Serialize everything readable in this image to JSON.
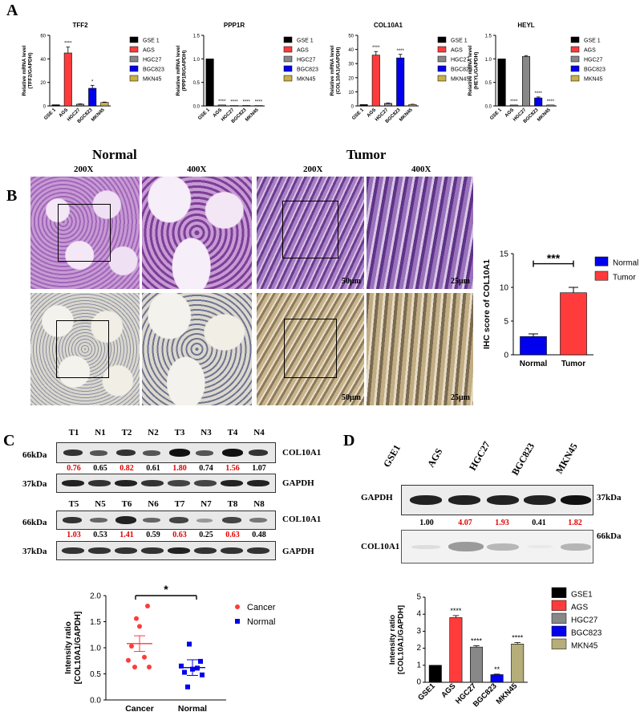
{
  "panels": {
    "A": "A",
    "B": "B",
    "C": "C",
    "D": "D"
  },
  "colors": {
    "black": "#000000",
    "red": "#ff3b3b",
    "gray": "#888888",
    "blue": "#0000ee",
    "olive": "#c8b04a",
    "tan": "#b5ad7a"
  },
  "panelA": {
    "legend": [
      "GSE 1",
      "AGS",
      "HGC27",
      "BGC823",
      "MKN45"
    ],
    "categories": [
      "GSE 1",
      "AGS",
      "HGC27",
      "BGC823",
      "MKN45"
    ]
  },
  "panelB": {
    "normal_title": "Normal",
    "tumor_title": "Tumor",
    "mag_labels": [
      "200X",
      "400X",
      "200X",
      "400X"
    ],
    "scale_labels": [
      "50μm",
      "25μm",
      "50μm",
      "25μm"
    ]
  },
  "panelC": {
    "row1_lanes": [
      "T1",
      "N1",
      "T2",
      "N2",
      "T3",
      "N3",
      "T4",
      "N4"
    ],
    "row1_ratios": [
      "0.76",
      "0.65",
      "0.82",
      "0.61",
      "1.80",
      "0.74",
      "1.56",
      "1.07"
    ],
    "row2_lanes": [
      "T5",
      "N5",
      "T6",
      "N6",
      "T7",
      "N7",
      "T8",
      "N8"
    ],
    "row2_ratios": [
      "1.03",
      "0.53",
      "1.41",
      "0.59",
      "0.63",
      "0.25",
      "0.63",
      "0.48"
    ],
    "kda_66": "66kDa",
    "kda_37": "37kDa",
    "col10a1": "COL10A1",
    "gapdh": "GAPDH"
  },
  "panelD": {
    "lanes": [
      "GSE1",
      "AGS",
      "HGC27",
      "BGC823",
      "MKN45"
    ],
    "ratios": [
      "1.00",
      "4.07",
      "1.93",
      "0.41",
      "1.82"
    ],
    "gapdh": "GAPDH",
    "col10a1": "COL10A1",
    "kda_37": "37kDa",
    "kda_66": "66kDa"
  },
  "chart_data": [
    {
      "id": "A1",
      "type": "bar",
      "title": "TFF2",
      "ylabel": "Relative mRNA level (TFF2/GAPDH)",
      "categories": [
        "GSE 1",
        "AGS",
        "HGC27",
        "BGC823",
        "MKN45"
      ],
      "values": [
        1,
        45,
        1.5,
        15,
        3
      ],
      "errors": [
        0,
        5,
        0.3,
        2.5,
        0.3
      ],
      "ylim": [
        0,
        60
      ],
      "yticks": [
        0,
        20,
        40,
        60
      ],
      "sig": [
        "",
        "****",
        "",
        "*",
        ""
      ]
    },
    {
      "id": "A2",
      "type": "bar",
      "title": "PPP1R",
      "ylabel": "Relative mRNA level (PPP1R/GAPDH)",
      "categories": [
        "GSE 1",
        "AGS",
        "HGC27",
        "BGC823",
        "MKN45"
      ],
      "values": [
        1,
        0.02,
        0.01,
        0.01,
        0.01
      ],
      "errors": [
        0,
        0,
        0,
        0,
        0
      ],
      "ylim": [
        0,
        1.5
      ],
      "yticks": [
        0.0,
        0.5,
        1.0,
        1.5
      ],
      "sig": [
        "",
        "****",
        "****",
        "****",
        "****"
      ]
    },
    {
      "id": "A3",
      "type": "bar",
      "title": "COL10A1",
      "ylabel": "Relative mRNA level (COL10A1/GAPDH)",
      "categories": [
        "GSE 1",
        "AGS",
        "HGC27",
        "BGC823",
        "MKN45"
      ],
      "values": [
        1,
        36,
        1.8,
        34,
        1
      ],
      "errors": [
        0,
        2.5,
        0.3,
        2.5,
        0.2
      ],
      "ylim": [
        0,
        50
      ],
      "yticks": [
        0,
        10,
        20,
        30,
        40,
        50
      ],
      "sig": [
        "",
        "****",
        "",
        "****",
        ""
      ]
    },
    {
      "id": "A4",
      "type": "bar",
      "title": "HEYL",
      "ylabel": "Relative mRNA level (HEYL/GAPDH)",
      "categories": [
        "GSE 1",
        "AGS",
        "HGC27",
        "BGC823",
        "MKN45"
      ],
      "values": [
        1,
        0.02,
        1.05,
        0.17,
        0.02
      ],
      "errors": [
        0,
        0,
        0.02,
        0.02,
        0
      ],
      "ylim": [
        0,
        1.5
      ],
      "yticks": [
        0.0,
        0.5,
        1.0,
        1.5
      ],
      "sig": [
        "",
        "****",
        "",
        "****",
        "****"
      ]
    },
    {
      "id": "B",
      "type": "bar",
      "ylabel": "IHC score of COL10A1",
      "categories": [
        "Normal",
        "Tumor"
      ],
      "values": [
        2.7,
        9.2
      ],
      "errors": [
        0.4,
        0.8
      ],
      "ylim": [
        0,
        15
      ],
      "yticks": [
        0,
        5,
        10,
        15
      ],
      "sig_label": "***",
      "legend": [
        "Normal",
        "Tumor"
      ]
    },
    {
      "id": "C",
      "type": "scatter",
      "ylabel": "Intensity ratio [COL10A1/GAPDH]",
      "categories": [
        "Cancer",
        "Normal"
      ],
      "ylim": [
        0,
        2.0
      ],
      "yticks": [
        0.0,
        0.5,
        1.0,
        1.5,
        2.0
      ],
      "series": [
        {
          "name": "Cancer",
          "values": [
            0.76,
            0.82,
            1.8,
            1.56,
            1.03,
            1.41,
            0.63,
            0.63
          ],
          "mean": 1.08
        },
        {
          "name": "Normal",
          "values": [
            0.65,
            0.61,
            0.74,
            1.07,
            0.53,
            0.59,
            0.25,
            0.48
          ],
          "mean": 0.62
        }
      ],
      "sig_label": "*",
      "legend": [
        "Cancer",
        "Normal"
      ]
    },
    {
      "id": "D",
      "type": "bar",
      "ylabel": "Intensity ratio [COL10A1/GAPDH]",
      "categories": [
        "GSE1",
        "AGS",
        "HGC27",
        "BGC823",
        "MKN45"
      ],
      "values": [
        1.0,
        3.8,
        2.07,
        0.45,
        2.25
      ],
      "errors": [
        0,
        0.12,
        0.08,
        0.03,
        0.08
      ],
      "ylim": [
        0,
        5
      ],
      "yticks": [
        0,
        1,
        2,
        3,
        4,
        5
      ],
      "sig": [
        "",
        "****",
        "****",
        "**",
        "****"
      ],
      "legend": [
        "GSE1",
        "AGS",
        "HGC27",
        "BGC823",
        "MKN45"
      ]
    }
  ]
}
